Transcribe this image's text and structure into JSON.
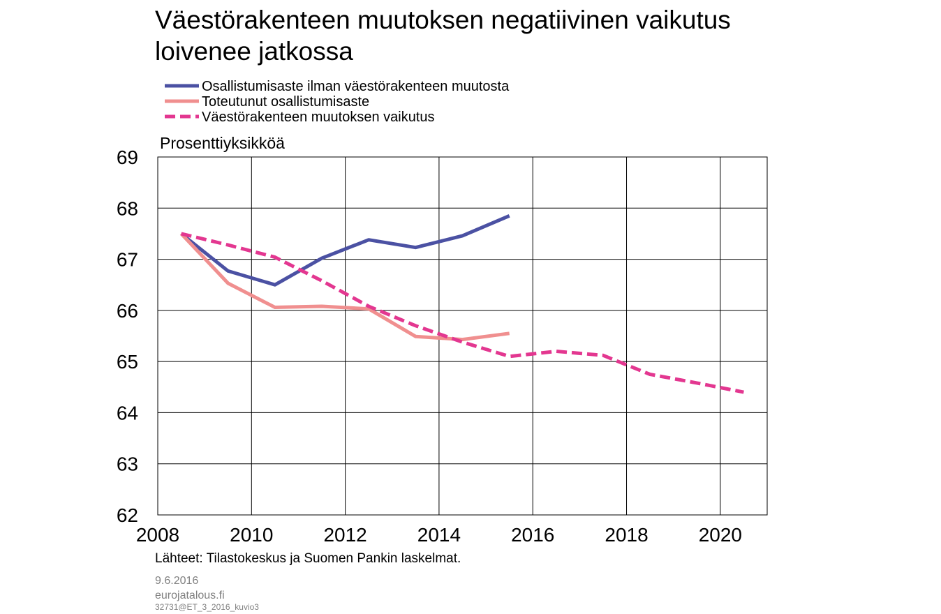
{
  "chart_data": {
    "type": "line",
    "title_lines": [
      "Väestörakenteen muutoksen negatiivinen vaikutus",
      "loivenee jatkossa"
    ],
    "ylabel": "Prosenttiyksikköä",
    "xlabel": "",
    "xlim": [
      2008,
      2021
    ],
    "ylim": [
      62,
      69
    ],
    "x_ticks": [
      "2008",
      "2010",
      "2012",
      "2014",
      "2016",
      "2018",
      "2020"
    ],
    "y_ticks": [
      "62",
      "63",
      "64",
      "65",
      "66",
      "67",
      "68",
      "69"
    ],
    "grid": true,
    "legend_position": "top-left",
    "series": [
      {
        "name": "Osallistumisaste ilman väestörakenteen muutosta",
        "color": "#4b51a3",
        "style": "solid",
        "points": [
          [
            2008.5,
            67.5
          ],
          [
            2009.5,
            66.77
          ],
          [
            2010.5,
            66.5
          ],
          [
            2011.5,
            67.02
          ],
          [
            2012.5,
            67.38
          ],
          [
            2013.5,
            67.23
          ],
          [
            2014.5,
            67.46
          ],
          [
            2015.5,
            67.85
          ]
        ]
      },
      {
        "name": "Toteutunut osallistumisaste",
        "color": "#f08f8f",
        "style": "solid",
        "points": [
          [
            2008.5,
            67.5
          ],
          [
            2009.5,
            66.53
          ],
          [
            2010.5,
            66.06
          ],
          [
            2011.5,
            66.08
          ],
          [
            2012.5,
            66.03
          ],
          [
            2013.5,
            65.49
          ],
          [
            2014.5,
            65.43
          ],
          [
            2015.5,
            65.55
          ]
        ]
      },
      {
        "name": "Väestörakenteen muutoksen vaikutus",
        "color": "#e33790",
        "style": "dashed",
        "points": [
          [
            2008.5,
            67.5
          ],
          [
            2009.5,
            67.28
          ],
          [
            2010.5,
            67.04
          ],
          [
            2011.5,
            66.58
          ],
          [
            2012.5,
            66.08
          ],
          [
            2013.5,
            65.7
          ],
          [
            2014.5,
            65.38
          ],
          [
            2015.5,
            65.1
          ],
          [
            2016.5,
            65.2
          ],
          [
            2017.5,
            65.12
          ],
          [
            2018.5,
            64.75
          ],
          [
            2019.5,
            64.58
          ],
          [
            2020.5,
            64.4
          ]
        ]
      }
    ]
  },
  "source": "Lähteet: Tilastokeskus ja Suomen Pankin laskelmat.",
  "footer": {
    "date": "9.6.2016",
    "site": "eurojatalous.fi",
    "code": "32731@ET_3_2016_kuvio3"
  }
}
